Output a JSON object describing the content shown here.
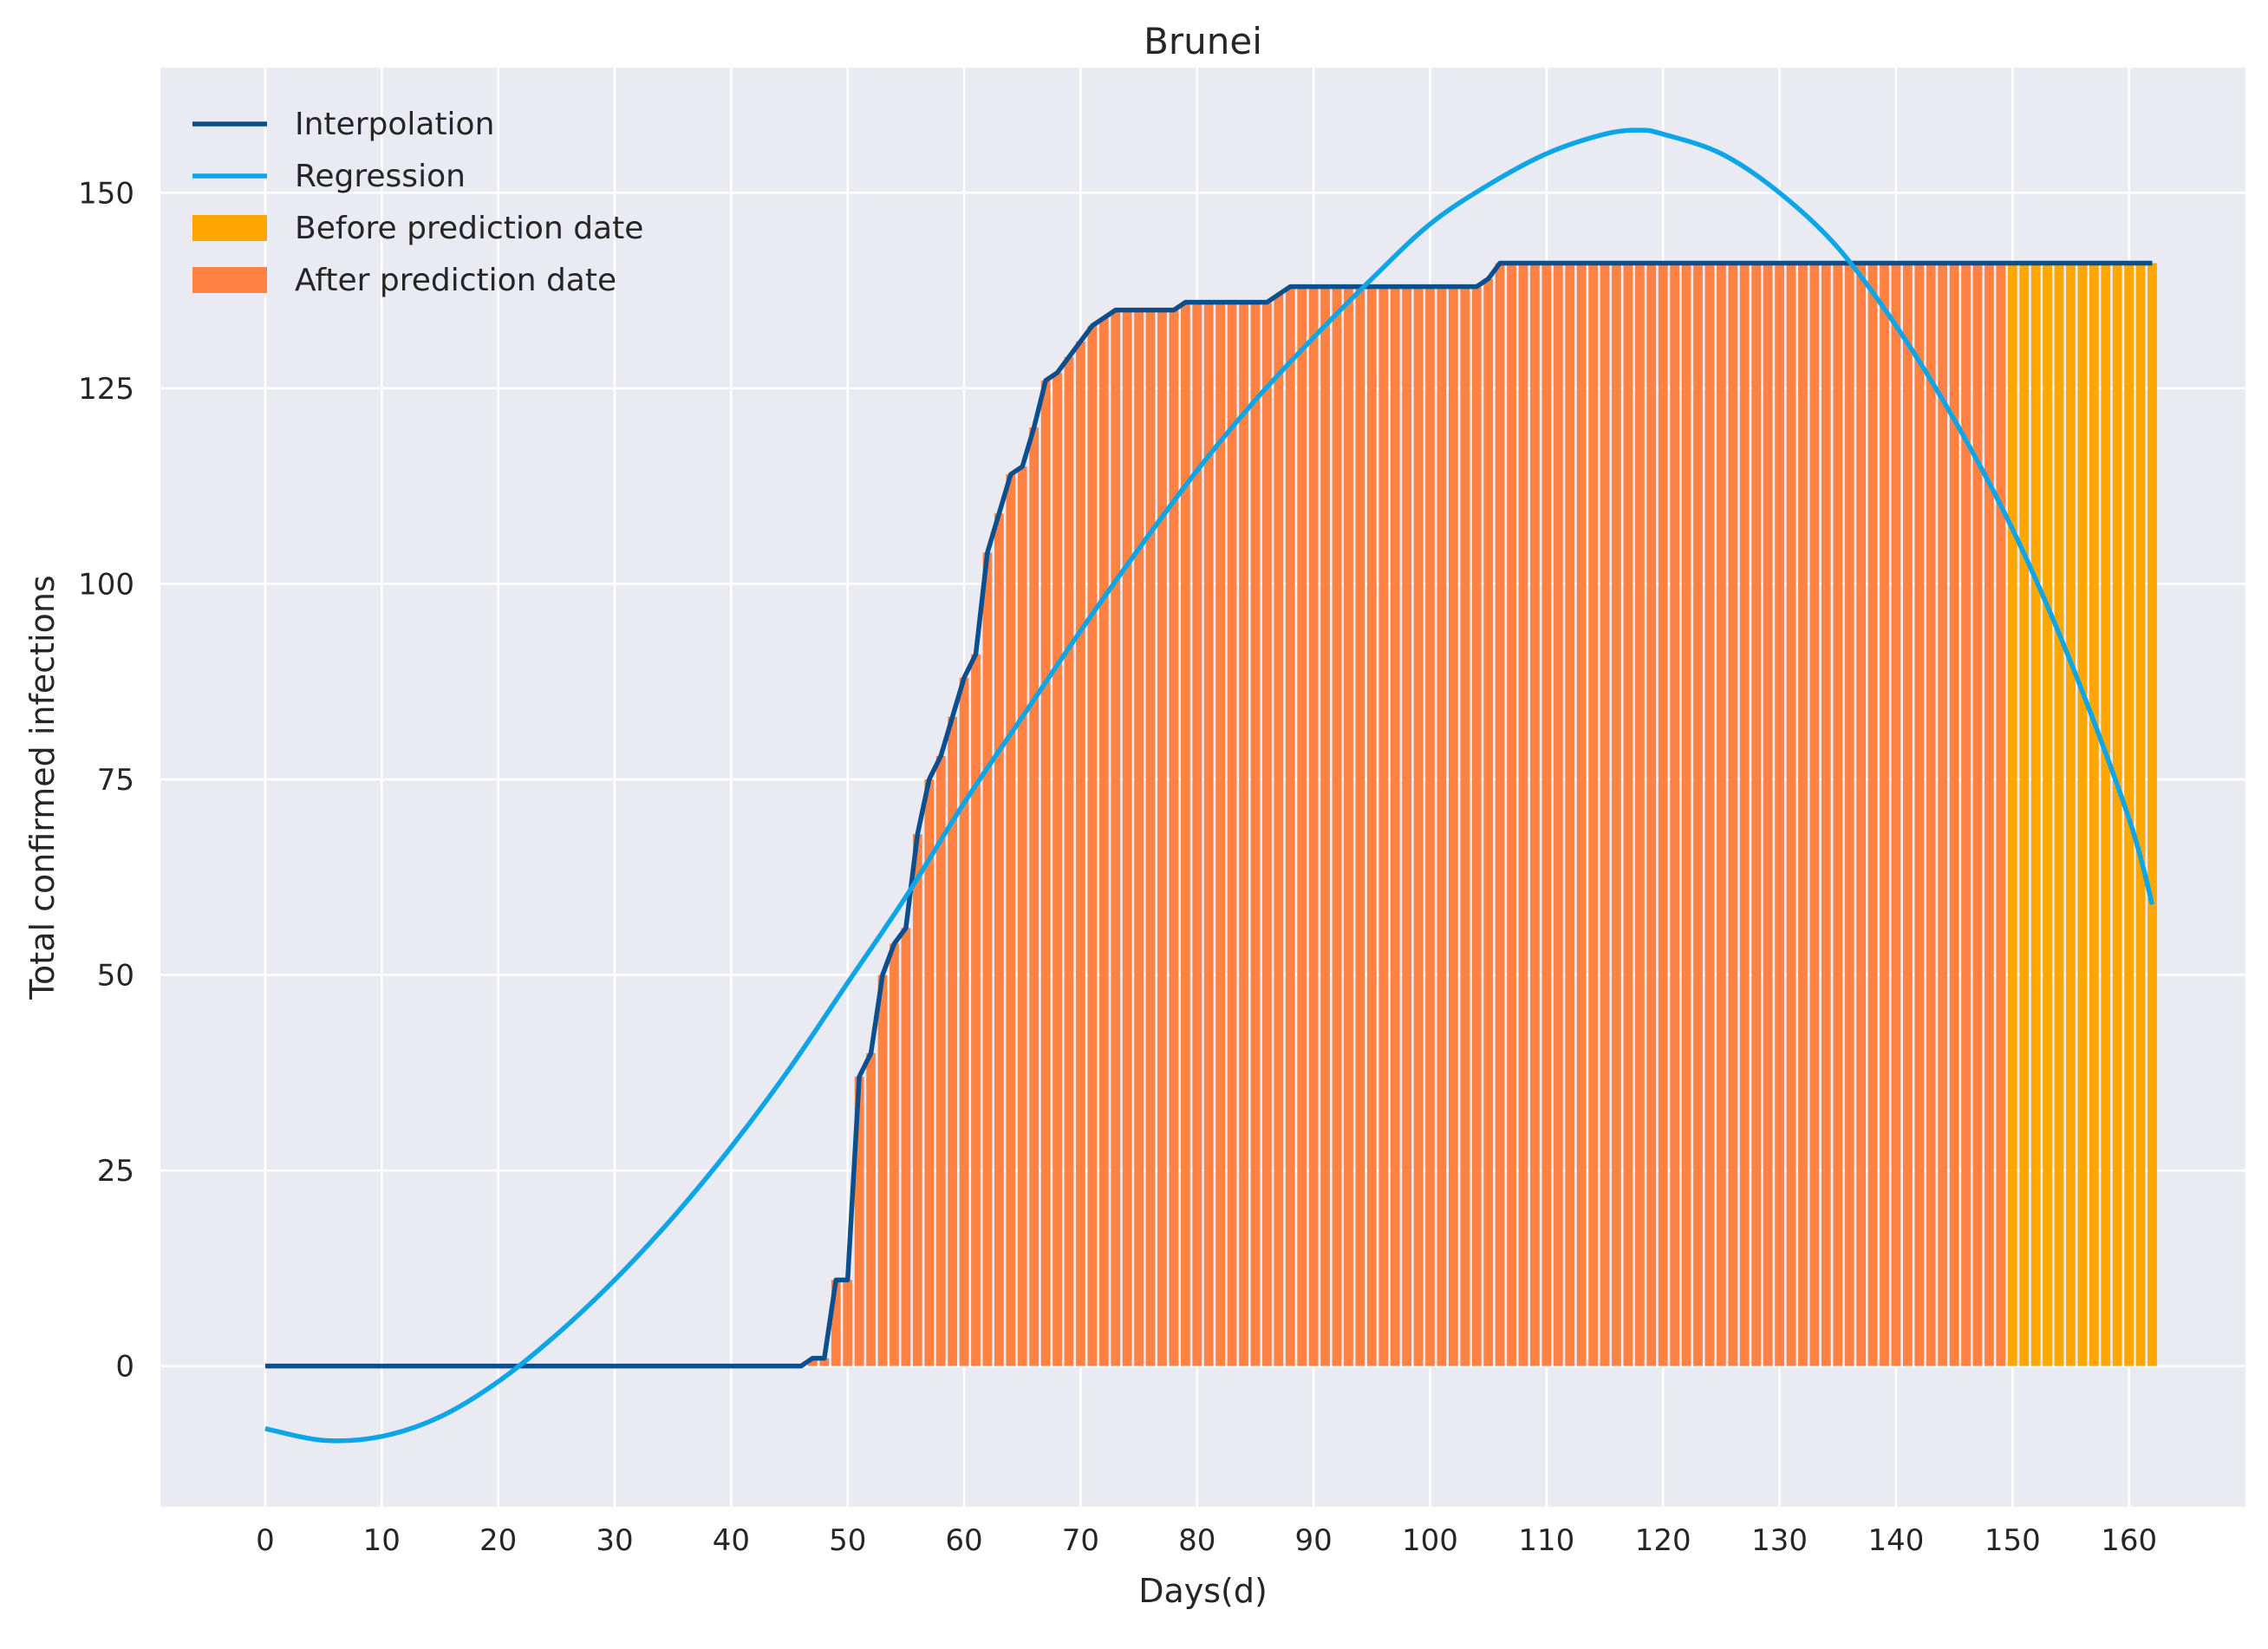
{
  "chart_data": {
    "type": "bar",
    "title": "Brunei",
    "xlabel": "Days(d)",
    "ylabel": "Total confirmed infections",
    "xlim": [
      -9,
      170
    ],
    "ylim": [
      -18,
      166
    ],
    "xticks": [
      0,
      10,
      20,
      30,
      40,
      50,
      60,
      70,
      80,
      90,
      100,
      110,
      120,
      130,
      140,
      150,
      160
    ],
    "yticks": [
      0,
      25,
      50,
      75,
      100,
      125,
      150
    ],
    "grid": true,
    "legend_position": "top-left",
    "colors": {
      "background": "#eaeaf2",
      "grid": "#ffffff",
      "interpolation": "#0b4f8f",
      "regression": "#0ca6e8",
      "before_prediction": "#ffa600",
      "after_prediction": "#ff8243"
    },
    "legend": [
      {
        "label": "Interpolation",
        "kind": "line",
        "color": "#0b4f8f"
      },
      {
        "label": "Regression",
        "kind": "line",
        "color": "#0ca6e8"
      },
      {
        "label": "Before prediction date",
        "kind": "patch",
        "color": "#ffa600"
      },
      {
        "label": "After prediction date",
        "kind": "patch",
        "color": "#ff8243"
      }
    ],
    "prediction_split_day": 150,
    "days": [
      0,
      1,
      2,
      3,
      4,
      5,
      6,
      7,
      8,
      9,
      10,
      11,
      12,
      13,
      14,
      15,
      16,
      17,
      18,
      19,
      20,
      21,
      22,
      23,
      24,
      25,
      26,
      27,
      28,
      29,
      30,
      31,
      32,
      33,
      34,
      35,
      36,
      37,
      38,
      39,
      40,
      41,
      42,
      43,
      44,
      45,
      46,
      47,
      48,
      49,
      50,
      51,
      52,
      53,
      54,
      55,
      56,
      57,
      58,
      59,
      60,
      61,
      62,
      63,
      64,
      65,
      66,
      67,
      68,
      69,
      70,
      71,
      72,
      73,
      74,
      75,
      76,
      77,
      78,
      79,
      80,
      81,
      82,
      83,
      84,
      85,
      86,
      87,
      88,
      89,
      90,
      91,
      92,
      93,
      94,
      95,
      96,
      97,
      98,
      99,
      100,
      101,
      102,
      103,
      104,
      105,
      106,
      107,
      108,
      109,
      110,
      111,
      112,
      113,
      114,
      115,
      116,
      117,
      118,
      119,
      120,
      121,
      122,
      123,
      124,
      125,
      126,
      127,
      128,
      129,
      130,
      131,
      132,
      133,
      134,
      135,
      136,
      137,
      138,
      139,
      140,
      141,
      142,
      143,
      144,
      145,
      146,
      147,
      148,
      149,
      150,
      151,
      152,
      153,
      154,
      155,
      156,
      157,
      158,
      159,
      160,
      161,
      162
    ],
    "interpolation": [
      0,
      0,
      0,
      0,
      0,
      0,
      0,
      0,
      0,
      0,
      0,
      0,
      0,
      0,
      0,
      0,
      0,
      0,
      0,
      0,
      0,
      0,
      0,
      0,
      0,
      0,
      0,
      0,
      0,
      0,
      0,
      0,
      0,
      0,
      0,
      0,
      0,
      0,
      0,
      0,
      0,
      0,
      0,
      0,
      0,
      0,
      0,
      1,
      1,
      11,
      11,
      37,
      40,
      50,
      54,
      56,
      68,
      75,
      78,
      83,
      88,
      91,
      104,
      109,
      114,
      115,
      120,
      126,
      127,
      129,
      131,
      133,
      134,
      135,
      135,
      135,
      135,
      135,
      135,
      136,
      136,
      136,
      136,
      136,
      136,
      136,
      136,
      137,
      138,
      138,
      138,
      138,
      138,
      138,
      138,
      138,
      138,
      138,
      138,
      138,
      138,
      138,
      138,
      138,
      138,
      139,
      141,
      141,
      141,
      141,
      141,
      141,
      141,
      141,
      141,
      141,
      141,
      141,
      141,
      141,
      141,
      141,
      141,
      141,
      141,
      141,
      141,
      141,
      141,
      141,
      141,
      141,
      141,
      141,
      141,
      141,
      141,
      141,
      141,
      141,
      141,
      141,
      141,
      141,
      141,
      141,
      141,
      141,
      141,
      141,
      141,
      141,
      141,
      141,
      141,
      141,
      141,
      141,
      141,
      141,
      141,
      141,
      141
    ],
    "regression_curve": {
      "x": [
        0,
        5,
        10,
        15,
        20,
        25,
        30,
        35,
        40,
        45,
        50,
        55,
        60,
        65,
        70,
        75,
        80,
        85,
        90,
        95,
        100,
        105,
        110,
        115,
        118,
        120,
        125,
        130,
        135,
        140,
        145,
        150,
        155,
        160,
        162
      ],
      "y": [
        -8,
        -9.5,
        -9,
        -6.5,
        -2,
        4,
        11,
        19,
        28,
        38,
        49,
        60,
        72,
        83,
        94,
        104.5,
        114.5,
        123.5,
        131.5,
        139,
        146,
        151,
        155,
        157.5,
        158,
        157.5,
        155,
        150,
        143,
        133,
        121,
        107,
        90,
        70,
        59
      ]
    }
  }
}
